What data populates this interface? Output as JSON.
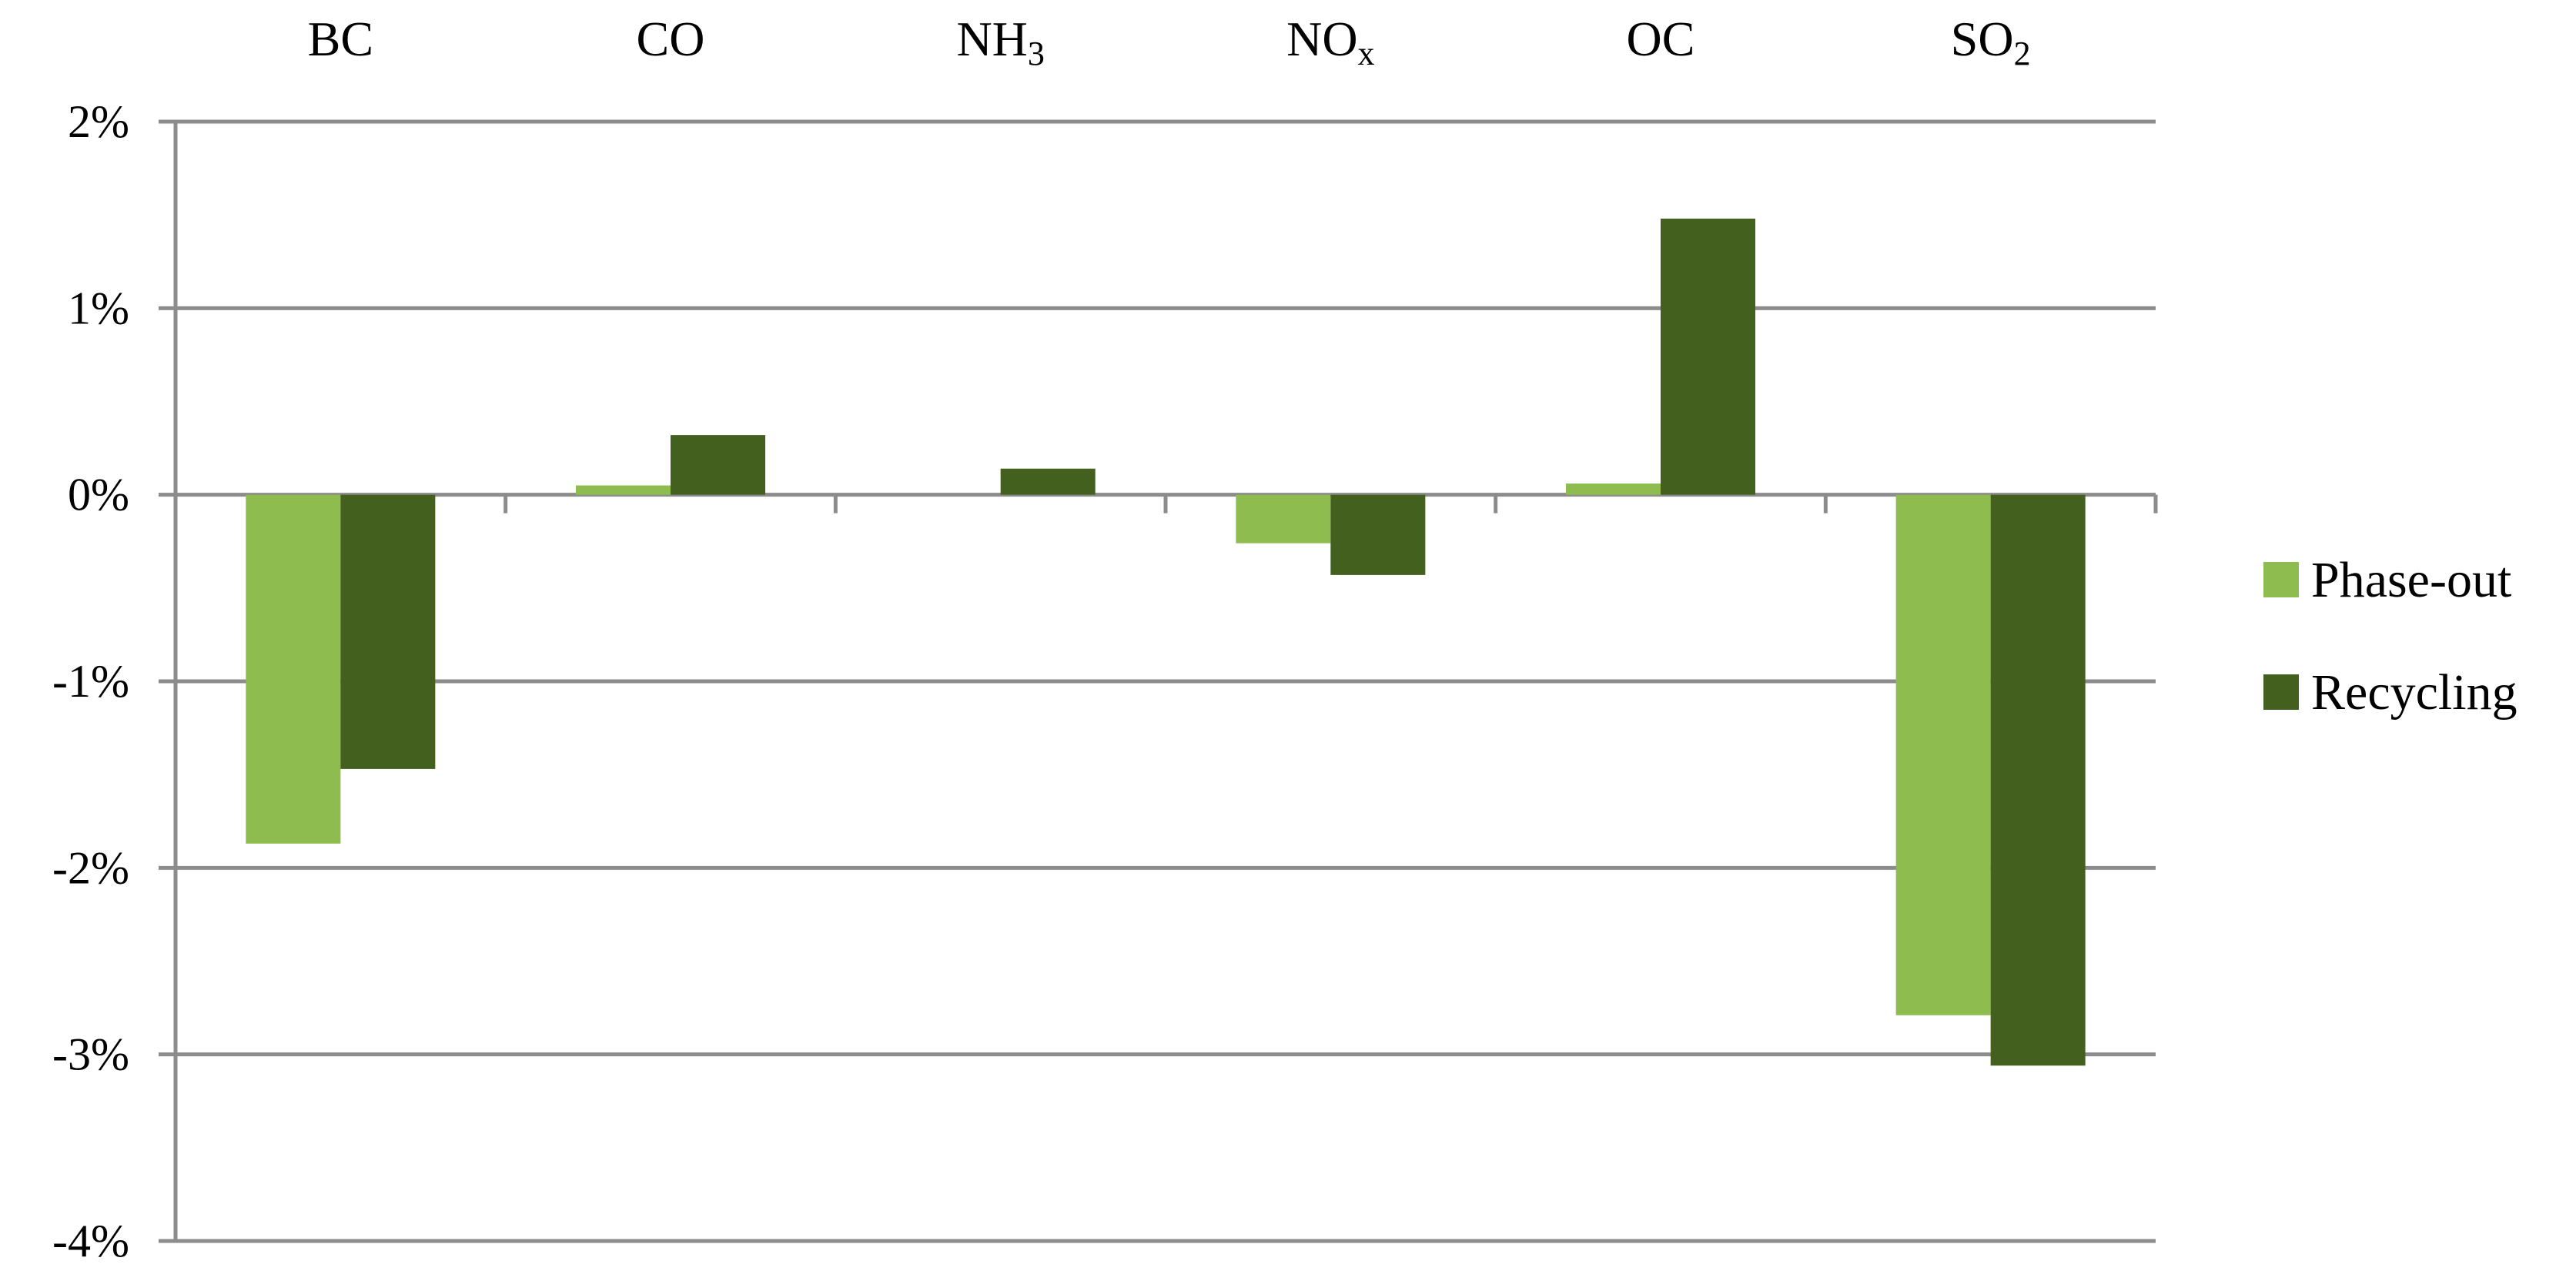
{
  "chart_data": {
    "type": "bar",
    "categories": [
      {
        "base": "BC",
        "sub": ""
      },
      {
        "base": "CO",
        "sub": ""
      },
      {
        "base": "NH",
        "sub": "3"
      },
      {
        "base": "NO",
        "sub": "x"
      },
      {
        "base": "OC",
        "sub": ""
      },
      {
        "base": "SO",
        "sub": "2"
      }
    ],
    "series": [
      {
        "name": "Phase-out",
        "color": "#8fbc4f",
        "values": [
          -1.87,
          0.05,
          0.0,
          -0.26,
          0.06,
          -2.79
        ]
      },
      {
        "name": "Recycling",
        "color": "#44601f",
        "values": [
          -1.47,
          0.32,
          0.14,
          -0.43,
          1.48,
          -3.06
        ]
      }
    ],
    "ylim": [
      -4,
      2
    ],
    "yticks": [
      2,
      1,
      0,
      -1,
      -2,
      -3,
      -4
    ],
    "ytick_labels": [
      "2%",
      "1%",
      "0%",
      "-1%",
      "-2%",
      "-3%",
      "-4%"
    ],
    "grid": true,
    "category_labels_position": "top",
    "legend_position": "right",
    "title": "",
    "xlabel": "",
    "ylabel": ""
  },
  "colors": {
    "grid": "#8c8c8c",
    "axis": "#8c8c8c"
  }
}
